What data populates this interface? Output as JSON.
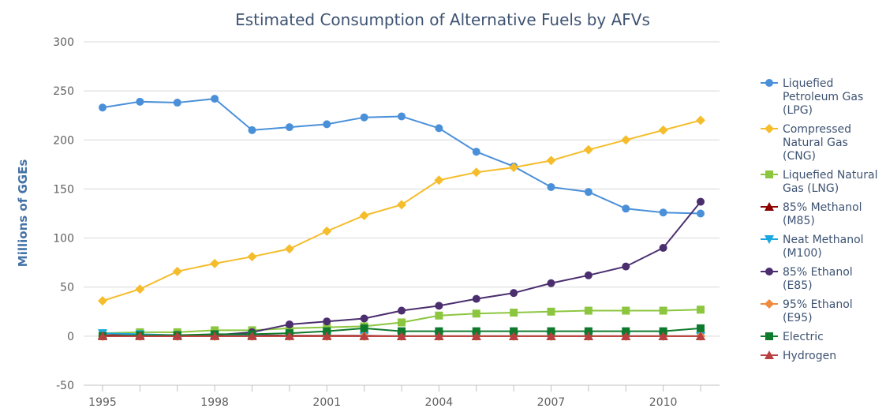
{
  "chart_data": {
    "type": "line",
    "title": "Estimated Consumption of Alternative Fuels by AFVs",
    "xlabel": "",
    "ylabel": "Millions of GGEs",
    "ylim": [
      -50,
      300
    ],
    "yticks": [
      -50,
      0,
      50,
      100,
      150,
      200,
      250,
      300
    ],
    "xlim": [
      1995,
      2011
    ],
    "xtick_labels": [
      "1995",
      "1998",
      "2001",
      "2004",
      "2007",
      "2010"
    ],
    "grid": "horizontal",
    "legend_position": "right",
    "x": [
      1995,
      1996,
      1997,
      1998,
      1999,
      2000,
      2001,
      2002,
      2003,
      2004,
      2005,
      2006,
      2007,
      2008,
      2009,
      2010,
      2011
    ],
    "series": [
      {
        "name": "Liquefied Petroleum Gas (LPG)",
        "legend_lines": [
          "Liquefied",
          "Petroleum Gas",
          "(LPG)"
        ],
        "color": "#4a90d9",
        "marker": "circle",
        "values": [
          233,
          239,
          238,
          242,
          210,
          213,
          216,
          223,
          224,
          212,
          188,
          173,
          152,
          147,
          130,
          126,
          125
        ]
      },
      {
        "name": "Compressed Natural Gas (CNG)",
        "legend_lines": [
          "Compressed",
          "Natural Gas",
          "(CNG)"
        ],
        "color": "#f5bd2c",
        "marker": "diamond",
        "values": [
          36,
          48,
          66,
          74,
          81,
          89,
          107,
          123,
          134,
          159,
          167,
          172,
          179,
          190,
          200,
          210,
          220
        ]
      },
      {
        "name": "Liquefied Natural Gas (LNG)",
        "legend_lines": [
          "Liquefied Natural",
          "Gas (LNG)"
        ],
        "color": "#8cc63f",
        "marker": "square",
        "values": [
          3,
          4,
          4,
          6,
          6,
          8,
          9,
          10,
          14,
          21,
          23,
          24,
          25,
          26,
          26,
          26,
          27
        ]
      },
      {
        "name": "85% Methanol (M85)",
        "legend_lines": [
          "85% Methanol",
          "(M85)"
        ],
        "color": "#8b0000",
        "marker": "triangle",
        "values": [
          1,
          1,
          1,
          1,
          1,
          0.5,
          0.5,
          0.5,
          0,
          0,
          0,
          0,
          0,
          0,
          0,
          0,
          0
        ]
      },
      {
        "name": "Neat Methanol (M100)",
        "legend_lines": [
          "Neat Methanol",
          "(M100)"
        ],
        "color": "#1aa8e0",
        "marker": "triangle-down",
        "values": [
          3,
          2,
          1,
          0.5,
          0.5,
          0,
          0,
          0,
          0,
          0,
          0,
          0,
          0,
          0,
          0,
          0,
          0
        ]
      },
      {
        "name": "85% Ethanol (E85)",
        "legend_lines": [
          "85% Ethanol",
          "(E85)"
        ],
        "color": "#4b2e6e",
        "marker": "circle",
        "values": [
          0,
          0,
          0,
          1,
          4,
          12,
          15,
          18,
          26,
          31,
          38,
          44,
          54,
          62,
          71,
          90,
          137
        ]
      },
      {
        "name": "95% Ethanol (E95)",
        "legend_lines": [
          "95% Ethanol",
          "(E95)"
        ],
        "color": "#f08a3c",
        "marker": "diamond",
        "values": [
          0,
          0,
          0,
          0,
          0,
          0,
          0,
          0,
          0,
          0,
          0,
          0,
          0,
          0,
          0,
          0,
          0
        ]
      },
      {
        "name": "Electric",
        "legend_lines": [
          "Electric"
        ],
        "color": "#0e7a2c",
        "marker": "square",
        "values": [
          0,
          1,
          1,
          2,
          2,
          3,
          5,
          8,
          5,
          5,
          5,
          5,
          5,
          5,
          5,
          5,
          8
        ]
      },
      {
        "name": "Hydrogen",
        "legend_lines": [
          "Hydrogen"
        ],
        "color": "#b94040",
        "marker": "triangle",
        "values": [
          0,
          0,
          0,
          0,
          0,
          0,
          0,
          0,
          0,
          0,
          0,
          0,
          0,
          0,
          0,
          0,
          0
        ]
      }
    ]
  }
}
